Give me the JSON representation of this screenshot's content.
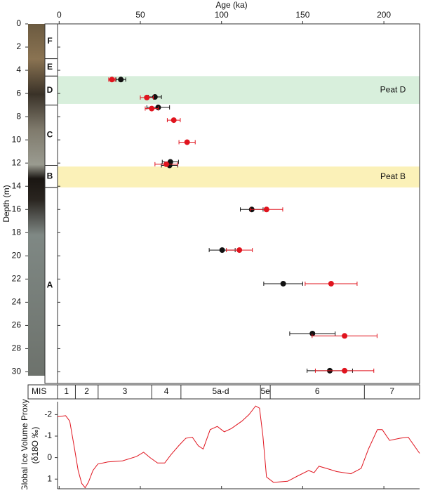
{
  "chart_data": [
    {
      "type": "scatter",
      "xlabel": "Age (ka)",
      "ylabel": "Depth (m)",
      "xlim": [
        -1,
        222
      ],
      "xticks": [
        0,
        50,
        100,
        150,
        200
      ],
      "ylim": [
        0,
        31
      ],
      "yticks": [
        0,
        2,
        4,
        6,
        8,
        10,
        12,
        14,
        16,
        18,
        20,
        22,
        24,
        26,
        28,
        30
      ],
      "y_inverted": true,
      "units": [
        {
          "label": "F",
          "top": 0,
          "bottom": 3
        },
        {
          "label": "E",
          "top": 3,
          "bottom": 4.5
        },
        {
          "label": "D",
          "top": 4.5,
          "bottom": 7
        },
        {
          "label": "C",
          "top": 7,
          "bottom": 12.2
        },
        {
          "label": "B",
          "top": 12.2,
          "bottom": 14.1
        },
        {
          "label": "A",
          "top": 14.1,
          "bottom": 31
        }
      ],
      "bands": [
        {
          "label": "Peat D",
          "from": 4.5,
          "to": 6.9,
          "color": "#d8efdc"
        },
        {
          "label": "Peat B",
          "from": 12.3,
          "to": 14.1,
          "color": "#fbf1b8"
        }
      ],
      "series": [
        {
          "color": "#111111",
          "x": [
            38,
            59,
            61,
            68.5,
            68,
            118.6,
            100.4,
            138,
            156,
            166.7
          ],
          "y": [
            4.8,
            6.3,
            7.2,
            11.9,
            12.2,
            16,
            19.5,
            22.4,
            26.7,
            29.9
          ],
          "xerr": [
            3,
            4,
            7,
            5,
            5,
            7,
            8,
            12,
            14,
            14
          ]
        },
        {
          "color": "#e0141e",
          "x": [
            32.5,
            54,
            57,
            70.6,
            78.8,
            66,
            127.7,
            111,
            167.5,
            175.8,
            175.8
          ],
          "y": [
            4.8,
            6.35,
            7.3,
            8.3,
            10.2,
            12.1,
            16,
            19.5,
            22.4,
            26.9,
            29.9
          ],
          "xerr": [
            2,
            4,
            4,
            4,
            5,
            7,
            10,
            8,
            16,
            20,
            18
          ]
        }
      ]
    },
    {
      "type": "mis",
      "axis_label": "MIS",
      "xlim": [
        -1,
        222
      ],
      "labels": [
        "1",
        "2",
        "3",
        "4",
        "5a-d",
        "5e",
        "6",
        "7"
      ],
      "boundaries": [
        -1,
        10,
        24,
        57,
        75,
        124,
        130,
        188,
        222
      ]
    },
    {
      "type": "line",
      "ylabel": [
        "Global Ice Volume Proxy",
        "(δ18O ‰)"
      ],
      "xlim": [
        -1,
        222
      ],
      "xticks": [
        0,
        50,
        100,
        150,
        200
      ],
      "ylim": [
        1.45,
        -2.6
      ],
      "yticks": [
        -2,
        -1,
        0,
        1
      ],
      "color": "#e0141e",
      "x": [
        -1,
        4,
        6.5,
        9.5,
        11.7,
        13.9,
        16,
        18,
        20.8,
        23.8,
        30,
        39,
        47.6,
        52,
        56,
        60.6,
        65,
        69,
        73.6,
        78,
        82,
        85.7,
        88.7,
        93,
        97.4,
        101.7,
        106,
        112.6,
        116.9,
        121,
        123.4,
        125.5,
        127.7,
        132,
        140.7,
        147,
        153.7,
        157,
        160,
        164.5,
        171,
        179.7,
        186,
        190.5,
        196,
        199,
        203.5,
        210,
        215,
        222
      ],
      "values": [
        -1.9,
        -1.95,
        -1.7,
        -0.4,
        0.6,
        1.2,
        1.4,
        1.15,
        0.6,
        0.3,
        0.2,
        0.15,
        -0.05,
        -0.25,
        0,
        0.25,
        0.25,
        -0.15,
        -0.55,
        -0.9,
        -0.95,
        -0.55,
        -0.4,
        -1.3,
        -1.45,
        -1.2,
        -1.35,
        -1.7,
        -2,
        -2.4,
        -2.3,
        -1,
        0.9,
        1.15,
        1.1,
        0.85,
        0.6,
        0.7,
        0.4,
        0.5,
        0.65,
        0.75,
        0.5,
        -0.4,
        -1.3,
        -1.3,
        -0.8,
        -0.9,
        -0.95,
        -0.2
      ]
    }
  ]
}
